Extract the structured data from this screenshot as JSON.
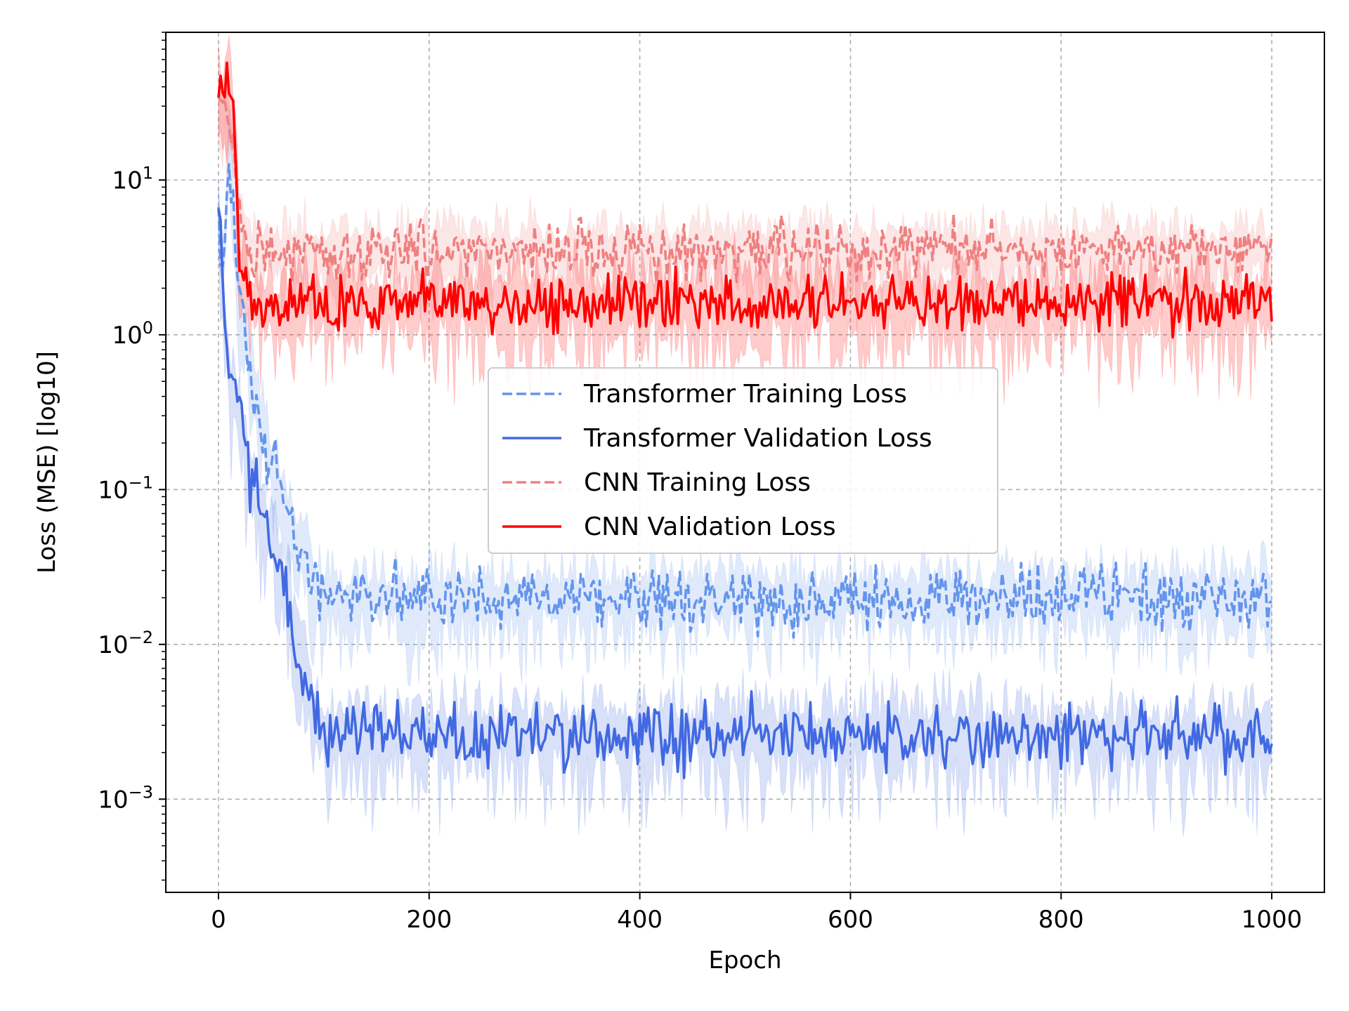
{
  "chart_data": {
    "type": "line",
    "title": "",
    "xlabel": "Epoch",
    "ylabel": "Loss (MSE) [log10]",
    "yscale": "log",
    "xlim": [
      -50,
      1050
    ],
    "ylim": [
      0.00025,
      90
    ],
    "grid": true,
    "legend_position": "center",
    "x_ticks": [
      {
        "value": 0,
        "label": "0"
      },
      {
        "value": 200,
        "label": "200"
      },
      {
        "value": 400,
        "label": "400"
      },
      {
        "value": 600,
        "label": "600"
      },
      {
        "value": 800,
        "label": "800"
      },
      {
        "value": 1000,
        "label": "1000"
      }
    ],
    "y_ticks": [
      {
        "value": 10,
        "base": "10",
        "exp": "1"
      },
      {
        "value": 1,
        "base": "10",
        "exp": "0"
      },
      {
        "value": 0.1,
        "base": "10",
        "exp": "−1"
      },
      {
        "value": 0.01,
        "base": "10",
        "exp": "−2"
      },
      {
        "value": 0.001,
        "base": "10",
        "exp": "−3"
      }
    ],
    "series": [
      {
        "name": "Transformer Training Loss",
        "color": "#6495ed",
        "style": "dashed",
        "plateau": 0.02,
        "noise_log10": 0.1,
        "band_log10": 0.25,
        "x": [
          0,
          5,
          10,
          20,
          30,
          40,
          50,
          60,
          70,
          80,
          90,
          100,
          1000
        ],
        "values": [
          5.0,
          2.0,
          18.0,
          1.5,
          0.6,
          0.3,
          0.15,
          0.08,
          0.05,
          0.035,
          0.025,
          0.02,
          0.02
        ]
      },
      {
        "name": "Transformer Validation Loss",
        "color": "#4169e1",
        "style": "solid",
        "plateau": 0.0026,
        "noise_log10": 0.1,
        "band_log10": 0.3,
        "x": [
          0,
          5,
          10,
          20,
          30,
          40,
          50,
          60,
          70,
          80,
          90,
          100,
          1000
        ],
        "values": [
          6.0,
          1.5,
          0.5,
          0.3,
          0.13,
          0.07,
          0.05,
          0.03,
          0.012,
          0.006,
          0.004,
          0.0026,
          0.0026
        ]
      },
      {
        "name": "CNN Training Loss",
        "color": "#f08080",
        "style": "dashed",
        "plateau": 3.5,
        "noise_log10": 0.09,
        "band_log10": 0.22,
        "x": [
          0,
          5,
          10,
          15,
          20,
          25,
          30,
          1000
        ],
        "values": [
          25.0,
          30.0,
          22.0,
          15.0,
          6.0,
          4.0,
          3.5,
          3.5
        ]
      },
      {
        "name": "CNN Validation Loss",
        "color": "#ff0000",
        "style": "solid",
        "plateau": 1.6,
        "noise_log10": 0.09,
        "band_log10": 0.3,
        "x": [
          0,
          5,
          10,
          15,
          20,
          25,
          30,
          35,
          1000
        ],
        "values": [
          30.0,
          35.0,
          38.0,
          25.0,
          3.0,
          2.5,
          1.8,
          1.6,
          1.6
        ]
      }
    ]
  }
}
